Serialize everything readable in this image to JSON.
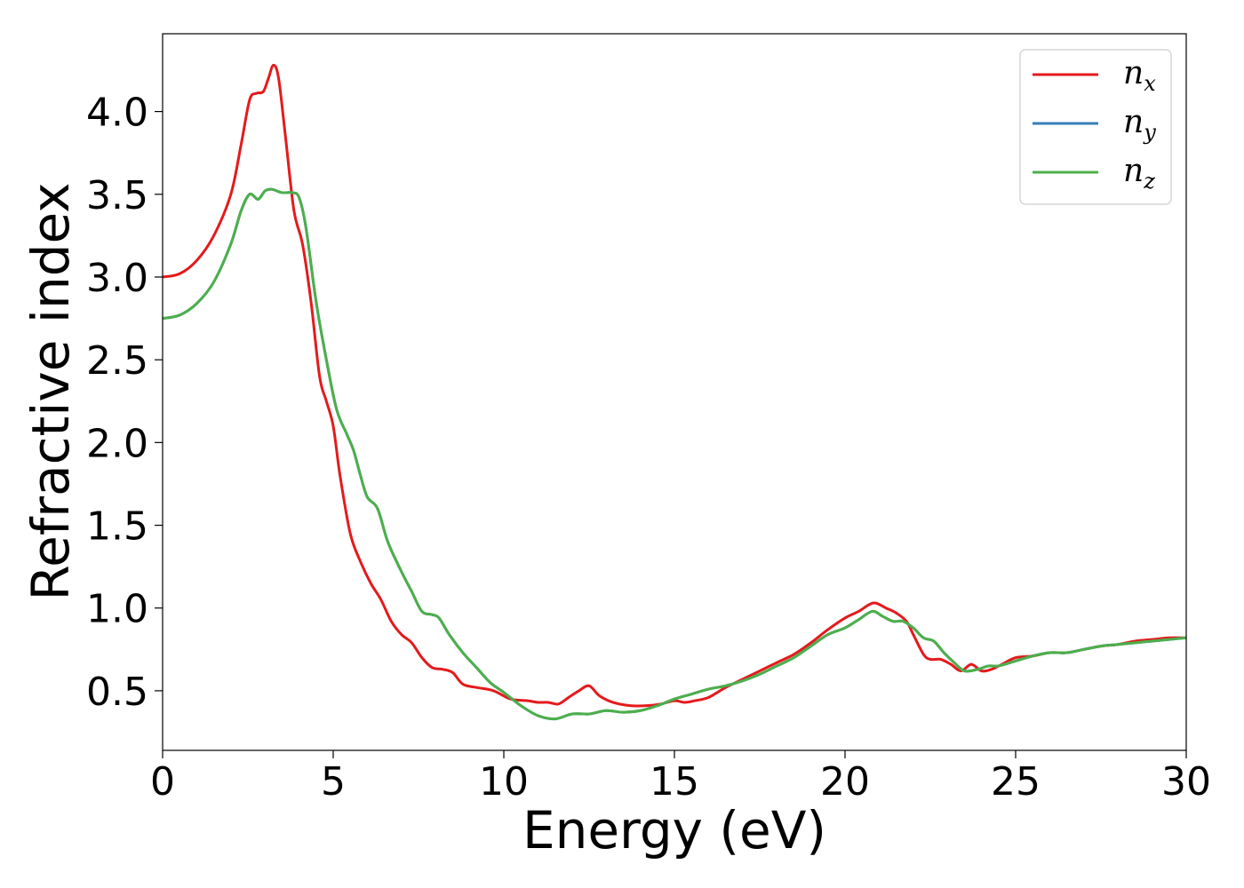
{
  "chart_data": {
    "type": "line",
    "title": "",
    "xlabel": "Energy (eV)",
    "ylabel": "Refractive index",
    "xlim": [
      0,
      30
    ],
    "ylim": [
      0.14,
      4.47
    ],
    "xticks": [
      "0",
      "5",
      "10",
      "15",
      "20",
      "25",
      "30"
    ],
    "yticks": [
      "0.5",
      "1.0",
      "1.5",
      "2.0",
      "2.5",
      "3.0",
      "3.5",
      "4.0"
    ],
    "grid": false,
    "legend_position": "top-right",
    "series": [
      {
        "name": "n",
        "subscript": "x",
        "color": "#e41a1c",
        "points": [
          [
            0,
            3.0
          ],
          [
            0.5,
            3.02
          ],
          [
            1.0,
            3.1
          ],
          [
            1.5,
            3.25
          ],
          [
            2.0,
            3.5
          ],
          [
            2.3,
            3.8
          ],
          [
            2.55,
            4.07
          ],
          [
            2.75,
            4.11
          ],
          [
            2.95,
            4.12
          ],
          [
            3.1,
            4.2
          ],
          [
            3.25,
            4.28
          ],
          [
            3.4,
            4.2
          ],
          [
            3.6,
            3.85
          ],
          [
            3.85,
            3.4
          ],
          [
            4.1,
            3.2
          ],
          [
            4.35,
            2.85
          ],
          [
            4.6,
            2.4
          ],
          [
            4.8,
            2.25
          ],
          [
            5.0,
            2.1
          ],
          [
            5.2,
            1.8
          ],
          [
            5.5,
            1.45
          ],
          [
            5.8,
            1.28
          ],
          [
            6.1,
            1.15
          ],
          [
            6.4,
            1.05
          ],
          [
            6.7,
            0.92
          ],
          [
            7.0,
            0.84
          ],
          [
            7.3,
            0.79
          ],
          [
            7.6,
            0.7
          ],
          [
            7.9,
            0.64
          ],
          [
            8.2,
            0.63
          ],
          [
            8.5,
            0.61
          ],
          [
            8.8,
            0.54
          ],
          [
            9.2,
            0.52
          ],
          [
            9.7,
            0.5
          ],
          [
            10.2,
            0.45
          ],
          [
            10.7,
            0.44
          ],
          [
            11.0,
            0.43
          ],
          [
            11.3,
            0.43
          ],
          [
            11.6,
            0.42
          ],
          [
            11.9,
            0.46
          ],
          [
            12.2,
            0.5
          ],
          [
            12.5,
            0.53
          ],
          [
            12.8,
            0.47
          ],
          [
            13.2,
            0.43
          ],
          [
            13.7,
            0.41
          ],
          [
            14.2,
            0.41
          ],
          [
            14.6,
            0.42
          ],
          [
            15.0,
            0.44
          ],
          [
            15.3,
            0.43
          ],
          [
            15.6,
            0.44
          ],
          [
            16.0,
            0.46
          ],
          [
            16.5,
            0.52
          ],
          [
            17.0,
            0.57
          ],
          [
            17.5,
            0.62
          ],
          [
            18.0,
            0.67
          ],
          [
            18.5,
            0.72
          ],
          [
            19.0,
            0.79
          ],
          [
            19.5,
            0.87
          ],
          [
            20.0,
            0.94
          ],
          [
            20.4,
            0.98
          ],
          [
            20.7,
            1.02
          ],
          [
            20.9,
            1.03
          ],
          [
            21.2,
            1.0
          ],
          [
            21.5,
            0.97
          ],
          [
            21.8,
            0.92
          ],
          [
            22.0,
            0.84
          ],
          [
            22.3,
            0.72
          ],
          [
            22.5,
            0.69
          ],
          [
            22.8,
            0.69
          ],
          [
            23.1,
            0.66
          ],
          [
            23.4,
            0.62
          ],
          [
            23.7,
            0.66
          ],
          [
            24.0,
            0.62
          ],
          [
            24.3,
            0.63
          ],
          [
            24.6,
            0.66
          ],
          [
            25.0,
            0.7
          ],
          [
            25.5,
            0.71
          ],
          [
            26.0,
            0.73
          ],
          [
            26.5,
            0.73
          ],
          [
            27.0,
            0.75
          ],
          [
            27.5,
            0.77
          ],
          [
            28.0,
            0.78
          ],
          [
            28.5,
            0.8
          ],
          [
            29.0,
            0.81
          ],
          [
            29.5,
            0.82
          ],
          [
            30.0,
            0.82
          ]
        ]
      },
      {
        "name": "n",
        "subscript": "y",
        "color": "#377eb8",
        "points": [
          [
            0,
            2.75
          ],
          [
            0.5,
            2.77
          ],
          [
            1.0,
            2.84
          ],
          [
            1.5,
            2.97
          ],
          [
            2.0,
            3.2
          ],
          [
            2.3,
            3.4
          ],
          [
            2.55,
            3.5
          ],
          [
            2.8,
            3.47
          ],
          [
            3.0,
            3.52
          ],
          [
            3.2,
            3.53
          ],
          [
            3.5,
            3.51
          ],
          [
            3.8,
            3.51
          ],
          [
            4.0,
            3.48
          ],
          [
            4.2,
            3.3
          ],
          [
            4.5,
            2.85
          ],
          [
            4.8,
            2.5
          ],
          [
            5.1,
            2.2
          ],
          [
            5.4,
            2.05
          ],
          [
            5.6,
            1.95
          ],
          [
            5.8,
            1.8
          ],
          [
            6.0,
            1.67
          ],
          [
            6.3,
            1.6
          ],
          [
            6.6,
            1.4
          ],
          [
            7.0,
            1.22
          ],
          [
            7.3,
            1.1
          ],
          [
            7.6,
            0.98
          ],
          [
            7.9,
            0.96
          ],
          [
            8.1,
            0.94
          ],
          [
            8.4,
            0.84
          ],
          [
            8.8,
            0.73
          ],
          [
            9.2,
            0.64
          ],
          [
            9.6,
            0.55
          ],
          [
            10.0,
            0.49
          ],
          [
            10.5,
            0.41
          ],
          [
            11.0,
            0.35
          ],
          [
            11.5,
            0.33
          ],
          [
            12.0,
            0.36
          ],
          [
            12.5,
            0.36
          ],
          [
            13.0,
            0.38
          ],
          [
            13.5,
            0.37
          ],
          [
            14.0,
            0.38
          ],
          [
            14.5,
            0.41
          ],
          [
            15.0,
            0.45
          ],
          [
            15.5,
            0.48
          ],
          [
            16.0,
            0.51
          ],
          [
            16.5,
            0.53
          ],
          [
            17.0,
            0.56
          ],
          [
            17.5,
            0.6
          ],
          [
            18.0,
            0.65
          ],
          [
            18.5,
            0.7
          ],
          [
            19.0,
            0.77
          ],
          [
            19.5,
            0.84
          ],
          [
            20.0,
            0.88
          ],
          [
            20.4,
            0.93
          ],
          [
            20.8,
            0.98
          ],
          [
            21.1,
            0.95
          ],
          [
            21.4,
            0.92
          ],
          [
            21.7,
            0.92
          ],
          [
            22.0,
            0.88
          ],
          [
            22.3,
            0.82
          ],
          [
            22.6,
            0.8
          ],
          [
            22.9,
            0.73
          ],
          [
            23.2,
            0.67
          ],
          [
            23.5,
            0.62
          ],
          [
            23.9,
            0.63
          ],
          [
            24.2,
            0.65
          ],
          [
            24.5,
            0.65
          ],
          [
            25.0,
            0.68
          ],
          [
            25.5,
            0.71
          ],
          [
            26.0,
            0.73
          ],
          [
            26.5,
            0.73
          ],
          [
            27.0,
            0.75
          ],
          [
            27.5,
            0.77
          ],
          [
            28.0,
            0.78
          ],
          [
            28.5,
            0.79
          ],
          [
            29.0,
            0.8
          ],
          [
            29.5,
            0.81
          ],
          [
            30.0,
            0.82
          ]
        ]
      },
      {
        "name": "n",
        "subscript": "z",
        "color": "#4daf4a",
        "points": [
          [
            0,
            2.75
          ],
          [
            0.5,
            2.77
          ],
          [
            1.0,
            2.84
          ],
          [
            1.5,
            2.97
          ],
          [
            2.0,
            3.2
          ],
          [
            2.3,
            3.4
          ],
          [
            2.55,
            3.5
          ],
          [
            2.8,
            3.47
          ],
          [
            3.0,
            3.52
          ],
          [
            3.2,
            3.53
          ],
          [
            3.5,
            3.51
          ],
          [
            3.8,
            3.51
          ],
          [
            4.0,
            3.48
          ],
          [
            4.2,
            3.3
          ],
          [
            4.5,
            2.85
          ],
          [
            4.8,
            2.5
          ],
          [
            5.1,
            2.2
          ],
          [
            5.4,
            2.05
          ],
          [
            5.6,
            1.95
          ],
          [
            5.8,
            1.8
          ],
          [
            6.0,
            1.67
          ],
          [
            6.3,
            1.6
          ],
          [
            6.6,
            1.4
          ],
          [
            7.0,
            1.22
          ],
          [
            7.3,
            1.1
          ],
          [
            7.6,
            0.98
          ],
          [
            7.9,
            0.96
          ],
          [
            8.1,
            0.94
          ],
          [
            8.4,
            0.84
          ],
          [
            8.8,
            0.73
          ],
          [
            9.2,
            0.64
          ],
          [
            9.6,
            0.55
          ],
          [
            10.0,
            0.49
          ],
          [
            10.5,
            0.41
          ],
          [
            11.0,
            0.35
          ],
          [
            11.5,
            0.33
          ],
          [
            12.0,
            0.36
          ],
          [
            12.5,
            0.36
          ],
          [
            13.0,
            0.38
          ],
          [
            13.5,
            0.37
          ],
          [
            14.0,
            0.38
          ],
          [
            14.5,
            0.41
          ],
          [
            15.0,
            0.45
          ],
          [
            15.5,
            0.48
          ],
          [
            16.0,
            0.51
          ],
          [
            16.5,
            0.53
          ],
          [
            17.0,
            0.56
          ],
          [
            17.5,
            0.6
          ],
          [
            18.0,
            0.65
          ],
          [
            18.5,
            0.7
          ],
          [
            19.0,
            0.77
          ],
          [
            19.5,
            0.84
          ],
          [
            20.0,
            0.88
          ],
          [
            20.4,
            0.93
          ],
          [
            20.8,
            0.98
          ],
          [
            21.1,
            0.95
          ],
          [
            21.4,
            0.92
          ],
          [
            21.7,
            0.92
          ],
          [
            22.0,
            0.88
          ],
          [
            22.3,
            0.82
          ],
          [
            22.6,
            0.8
          ],
          [
            22.9,
            0.73
          ],
          [
            23.2,
            0.67
          ],
          [
            23.5,
            0.62
          ],
          [
            23.9,
            0.63
          ],
          [
            24.2,
            0.65
          ],
          [
            24.5,
            0.65
          ],
          [
            25.0,
            0.68
          ],
          [
            25.5,
            0.71
          ],
          [
            26.0,
            0.73
          ],
          [
            26.5,
            0.73
          ],
          [
            27.0,
            0.75
          ],
          [
            27.5,
            0.77
          ],
          [
            28.0,
            0.78
          ],
          [
            28.5,
            0.79
          ],
          [
            29.0,
            0.8
          ],
          [
            29.5,
            0.81
          ],
          [
            30.0,
            0.82
          ]
        ]
      }
    ]
  }
}
